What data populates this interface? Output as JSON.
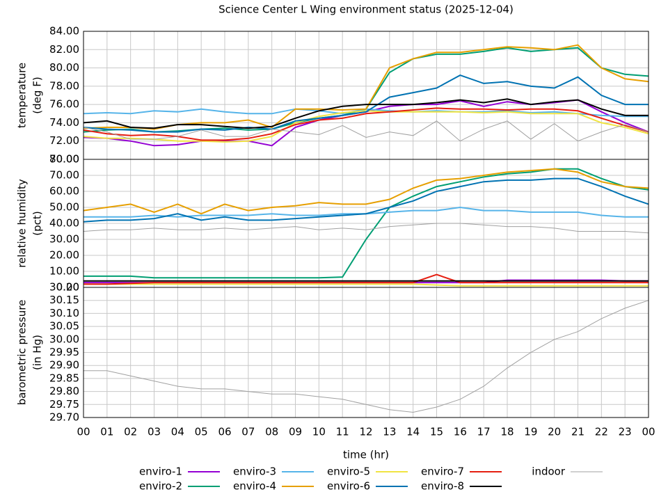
{
  "chart_data": [
    {
      "type": "line",
      "title": "Science Center L Wing environment status (2025-12-04)",
      "ylabel": [
        "temperature",
        "(deg F)"
      ],
      "x": [
        0,
        1,
        2,
        3,
        4,
        5,
        6,
        7,
        8,
        9,
        10,
        11,
        12,
        13,
        14,
        15,
        16,
        17,
        18,
        19,
        20,
        21,
        22,
        23,
        24
      ],
      "xlim": [
        0,
        24
      ],
      "xticks": [
        0,
        1,
        2,
        3,
        4,
        5,
        6,
        7,
        8,
        9,
        10,
        11,
        12,
        13,
        14,
        15,
        16,
        17,
        18,
        19,
        20,
        21,
        22,
        23,
        24
      ],
      "ylim": [
        70,
        84
      ],
      "yticks": [
        {
          "value": 70,
          "label": "70.00"
        },
        {
          "value": 72,
          "label": "72.00"
        },
        {
          "value": 74,
          "label": "74.00"
        },
        {
          "value": 76,
          "label": "76.00"
        },
        {
          "value": 78,
          "label": "78.00"
        },
        {
          "value": 80,
          "label": "80.00"
        },
        {
          "value": 82,
          "label": "82.00"
        },
        {
          "value": 84,
          "label": "84.00"
        }
      ],
      "grid": true,
      "series": [
        {
          "name": "enviro-1",
          "color": "#9400d3",
          "values": [
            72.4,
            72.3,
            72.0,
            71.5,
            71.6,
            72.0,
            72.0,
            72.0,
            71.5,
            73.5,
            74.3,
            74.8,
            75.2,
            75.8,
            76.0,
            76.0,
            76.4,
            75.8,
            76.3,
            76.0,
            76.2,
            76.5,
            75.2,
            74.0,
            73.0
          ]
        },
        {
          "name": "enviro-2",
          "color": "#009e73",
          "values": [
            73.0,
            73.2,
            73.3,
            73.0,
            73.1,
            73.3,
            73.4,
            73.2,
            73.3,
            74.0,
            74.5,
            74.8,
            75.5,
            79.5,
            81.0,
            81.5,
            81.5,
            81.8,
            82.2,
            81.8,
            82.0,
            82.2,
            80.0,
            79.3,
            79.1
          ]
        },
        {
          "name": "enviro-3",
          "color": "#56b4e9",
          "values": [
            75.0,
            75.1,
            75.0,
            75.3,
            75.2,
            75.5,
            75.2,
            75.0,
            75.0,
            75.5,
            75.3,
            75.0,
            75.5,
            75.3,
            75.2,
            75.3,
            75.2,
            75.2,
            75.3,
            75.1,
            75.2,
            75.0,
            74.8,
            74.7,
            74.7
          ]
        },
        {
          "name": "enviro-4",
          "color": "#e69f00",
          "values": [
            73.4,
            73.5,
            73.5,
            73.3,
            73.8,
            74.0,
            74.0,
            74.3,
            73.5,
            75.5,
            75.5,
            75.4,
            75.5,
            80.0,
            81.0,
            81.7,
            81.7,
            82.0,
            82.3,
            82.2,
            82.0,
            82.5,
            80.0,
            78.8,
            78.5
          ]
        },
        {
          "name": "enviro-5",
          "color": "#f0e442",
          "values": [
            72.5,
            72.3,
            72.3,
            72.2,
            72.0,
            72.0,
            71.9,
            72.0,
            72.5,
            74.0,
            74.7,
            75.1,
            75.3,
            75.2,
            75.2,
            75.2,
            75.2,
            75.1,
            75.2,
            75.0,
            75.0,
            75.0,
            74.0,
            73.5,
            72.8
          ]
        },
        {
          "name": "enviro-6",
          "color": "#0072b2",
          "values": [
            73.5,
            73.3,
            73.2,
            73.0,
            73.0,
            73.3,
            73.2,
            73.5,
            73.3,
            74.2,
            74.5,
            74.8,
            75.2,
            76.8,
            77.3,
            77.8,
            79.2,
            78.3,
            78.5,
            78.0,
            77.8,
            79.0,
            77.0,
            76.0,
            76.0
          ]
        },
        {
          "name": "enviro-7",
          "color": "#e51e10",
          "values": [
            73.2,
            72.8,
            72.6,
            72.7,
            72.5,
            72.1,
            72.1,
            72.3,
            72.8,
            73.8,
            74.3,
            74.5,
            75.0,
            75.2,
            75.4,
            75.6,
            75.5,
            75.5,
            75.4,
            75.5,
            75.5,
            75.3,
            74.5,
            73.7,
            73.0
          ]
        },
        {
          "name": "enviro-8",
          "color": "#000000",
          "values": [
            74.0,
            74.2,
            73.5,
            73.4,
            73.8,
            73.8,
            73.6,
            73.4,
            73.6,
            74.5,
            75.3,
            75.8,
            76.0,
            76.0,
            76.0,
            76.2,
            76.5,
            76.2,
            76.6,
            76.0,
            76.3,
            76.5,
            75.5,
            74.8,
            74.8
          ]
        },
        {
          "name": "indoor",
          "color": "#a0a0a0",
          "values": [
            73.5,
            73.0,
            72.2,
            72.2,
            72.5,
            73.2,
            72.5,
            72.5,
            73.3,
            73.0,
            72.7,
            73.7,
            72.4,
            73.0,
            72.6,
            74.2,
            72.0,
            73.3,
            74.2,
            72.2,
            73.9,
            72.0,
            73.0,
            73.8,
            73.0
          ]
        }
      ]
    },
    {
      "type": "line",
      "ylabel": [
        "relative humidity",
        "(pct)"
      ],
      "x": [
        0,
        1,
        2,
        3,
        4,
        5,
        6,
        7,
        8,
        9,
        10,
        11,
        12,
        13,
        14,
        15,
        16,
        17,
        18,
        19,
        20,
        21,
        22,
        23,
        24
      ],
      "xlim": [
        0,
        24
      ],
      "xticks": [
        0,
        1,
        2,
        3,
        4,
        5,
        6,
        7,
        8,
        9,
        10,
        11,
        12,
        13,
        14,
        15,
        16,
        17,
        18,
        19,
        20,
        21,
        22,
        23,
        24
      ],
      "ylim": [
        0,
        80
      ],
      "yticks": [
        {
          "value": 0,
          "label": "0.00"
        },
        {
          "value": 10,
          "label": "10.00"
        },
        {
          "value": 20,
          "label": "20.00"
        },
        {
          "value": 30,
          "label": "30.00"
        },
        {
          "value": 40,
          "label": "40.00"
        },
        {
          "value": 50,
          "label": "50.00"
        },
        {
          "value": 60,
          "label": "60.00"
        },
        {
          "value": 70,
          "label": "70.00"
        },
        {
          "value": 80,
          "label": "80.00"
        }
      ],
      "grid": true,
      "series": [
        {
          "color": "#9400d3",
          "values": [
            3,
            3,
            3,
            3,
            3,
            3,
            3,
            3,
            3,
            3,
            3,
            3,
            3,
            3,
            3,
            3,
            3,
            3,
            4.5,
            4.5,
            4.5,
            4.5,
            4.5,
            4,
            4
          ]
        },
        {
          "color": "#009e73",
          "values": [
            7,
            7,
            7,
            6,
            6,
            6,
            6,
            6,
            6,
            6,
            6,
            6.5,
            30,
            50,
            57,
            63,
            66,
            69,
            71,
            72,
            74,
            74,
            68,
            63,
            61
          ]
        },
        {
          "color": "#56b4e9",
          "values": [
            44,
            44,
            44,
            45,
            44,
            45,
            45,
            45,
            46,
            45,
            45,
            46,
            46,
            47,
            48,
            48,
            50,
            48,
            48,
            47,
            47,
            47,
            45,
            44,
            44
          ]
        },
        {
          "color": "#e69f00",
          "values": [
            48,
            50,
            52,
            47,
            52,
            46,
            52,
            48,
            50,
            51,
            53,
            52,
            52,
            55,
            62,
            67,
            68,
            70,
            72,
            73,
            74,
            72,
            66,
            63,
            62
          ]
        },
        {
          "color": "#f0e442",
          "values": [
            2,
            2,
            2,
            2,
            2,
            2,
            2,
            2,
            2,
            2,
            2,
            2,
            2,
            2,
            2,
            1.5,
            1,
            1,
            1,
            1,
            1,
            1,
            1,
            1,
            1
          ]
        },
        {
          "color": "#0072b2",
          "values": [
            41,
            42,
            42,
            43,
            46,
            42,
            44,
            42,
            42,
            43,
            44,
            45,
            46,
            50,
            54,
            60,
            63,
            66,
            67,
            67,
            68,
            68,
            63,
            57,
            52
          ]
        },
        {
          "color": "#e51e10",
          "values": [
            2,
            2,
            2.5,
            3,
            3,
            3,
            3,
            3,
            3,
            3,
            3,
            3,
            3,
            3,
            3,
            8,
            3,
            3,
            3,
            3,
            3,
            3,
            3,
            3,
            3
          ]
        },
        {
          "color": "#000000",
          "values": [
            4,
            4,
            4,
            4,
            4,
            4,
            4,
            4,
            4,
            4,
            4,
            4,
            4,
            4,
            4,
            4,
            4,
            4,
            4,
            4,
            4,
            4,
            4,
            4,
            4
          ]
        },
        {
          "color": "#a0a0a0",
          "values": [
            35,
            36,
            36,
            37,
            36,
            36,
            37,
            36,
            37,
            38,
            36,
            37,
            36,
            38,
            39,
            40,
            40,
            39,
            38,
            38,
            37,
            35,
            35,
            35,
            34
          ]
        }
      ]
    },
    {
      "type": "line",
      "ylabel": [
        "barometric pressure",
        "(in Hg)"
      ],
      "xlabel": "time (hr)",
      "x": [
        0,
        1,
        2,
        3,
        4,
        5,
        6,
        7,
        8,
        9,
        10,
        11,
        12,
        13,
        14,
        15,
        16,
        17,
        18,
        19,
        20,
        21,
        22,
        23,
        24
      ],
      "xlim": [
        0,
        24
      ],
      "xticks": [
        {
          "value": 0,
          "label": "00"
        },
        {
          "value": 1,
          "label": "01"
        },
        {
          "value": 2,
          "label": "02"
        },
        {
          "value": 3,
          "label": "03"
        },
        {
          "value": 4,
          "label": "04"
        },
        {
          "value": 5,
          "label": "05"
        },
        {
          "value": 6,
          "label": "06"
        },
        {
          "value": 7,
          "label": "07"
        },
        {
          "value": 8,
          "label": "08"
        },
        {
          "value": 9,
          "label": "09"
        },
        {
          "value": 10,
          "label": "10"
        },
        {
          "value": 11,
          "label": "11"
        },
        {
          "value": 12,
          "label": "12"
        },
        {
          "value": 13,
          "label": "13"
        },
        {
          "value": 14,
          "label": "14"
        },
        {
          "value": 15,
          "label": "15"
        },
        {
          "value": 16,
          "label": "16"
        },
        {
          "value": 17,
          "label": "17"
        },
        {
          "value": 18,
          "label": "18"
        },
        {
          "value": 19,
          "label": "19"
        },
        {
          "value": 20,
          "label": "20"
        },
        {
          "value": 21,
          "label": "21"
        },
        {
          "value": 22,
          "label": "22"
        },
        {
          "value": 23,
          "label": "23"
        },
        {
          "value": 24,
          "label": "00"
        }
      ],
      "ylim": [
        29.7,
        30.2
      ],
      "yticks": [
        {
          "value": 29.7,
          "label": "29.70"
        },
        {
          "value": 29.75,
          "label": "29.75"
        },
        {
          "value": 29.8,
          "label": "29.80"
        },
        {
          "value": 29.85,
          "label": "29.85"
        },
        {
          "value": 29.9,
          "label": "29.90"
        },
        {
          "value": 29.95,
          "label": "29.95"
        },
        {
          "value": 30.0,
          "label": "30.00"
        },
        {
          "value": 30.05,
          "label": "30.05"
        },
        {
          "value": 30.1,
          "label": "30.10"
        },
        {
          "value": 30.15,
          "label": "30.15"
        },
        {
          "value": 30.2,
          "label": "30.20"
        }
      ],
      "grid": true,
      "series": [
        {
          "color": "#a0a0a0",
          "values": [
            29.88,
            29.88,
            29.86,
            29.84,
            29.82,
            29.81,
            29.81,
            29.8,
            29.79,
            29.79,
            29.78,
            29.77,
            29.75,
            29.73,
            29.72,
            29.74,
            29.77,
            29.82,
            29.89,
            29.95,
            30.0,
            30.03,
            30.08,
            30.12,
            30.15
          ]
        }
      ]
    }
  ]
}
